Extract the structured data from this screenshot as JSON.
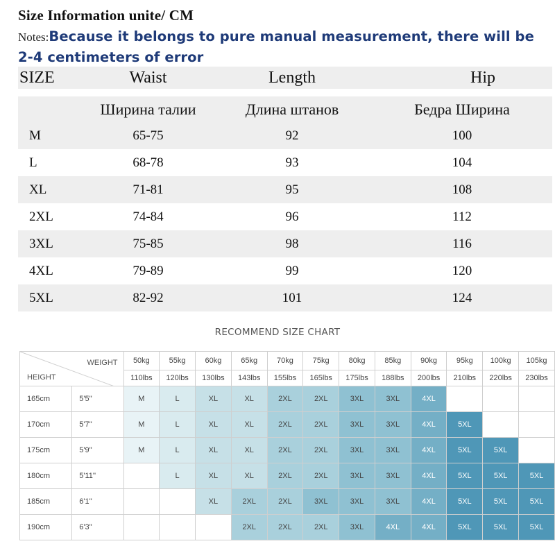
{
  "header": {
    "title": "Size Information unite/ CM",
    "notes_label": "Notes:",
    "notes_text": "Because it belongs to pure manual measurement, there will be 2-4 centimeters of error"
  },
  "size_table": {
    "headers": [
      "SIZE",
      "Waist",
      "Length",
      "Hip"
    ],
    "ru_headers": [
      "",
      "Ширина талии",
      "Длина штанов",
      "Бедра Ширина"
    ],
    "rows": [
      {
        "size": "M",
        "waist": "65-75",
        "length": "92",
        "hip": "100"
      },
      {
        "size": "L",
        "waist": "68-78",
        "length": "93",
        "hip": "104"
      },
      {
        "size": "XL",
        "waist": "71-81",
        "length": "95",
        "hip": "108"
      },
      {
        "size": "2XL",
        "waist": "74-84",
        "length": "96",
        "hip": "112"
      },
      {
        "size": "3XL",
        "waist": "75-85",
        "length": "98",
        "hip": "116"
      },
      {
        "size": "4XL",
        "waist": "79-89",
        "length": "99",
        "hip": "120"
      },
      {
        "size": "5XL",
        "waist": "82-92",
        "length": "101",
        "hip": "124"
      }
    ]
  },
  "recommend": {
    "title": "RECOMMEND SIZE CHART",
    "weight_label": "WEIGHT",
    "height_label": "HEIGHT",
    "weights_kg": [
      "50kg",
      "55kg",
      "60kg",
      "65kg",
      "70kg",
      "75kg",
      "80kg",
      "85kg",
      "90kg",
      "95kg",
      "100kg",
      "105kg"
    ],
    "weights_lbs": [
      "110lbs",
      "120lbs",
      "130lbs",
      "143lbs",
      "155lbs",
      "165lbs",
      "175lbs",
      "188lbs",
      "200lbs",
      "210lbs",
      "220lbs",
      "230lbs"
    ],
    "rows": [
      {
        "cm": "165cm",
        "ft": "5'5''",
        "cells": [
          "M",
          "L",
          "XL",
          "XL",
          "2XL",
          "2XL",
          "3XL",
          "3XL",
          "4XL",
          "",
          "",
          ""
        ]
      },
      {
        "cm": "170cm",
        "ft": "5'7''",
        "cells": [
          "M",
          "L",
          "XL",
          "XL",
          "2XL",
          "2XL",
          "3XL",
          "3XL",
          "4XL",
          "5XL",
          "",
          ""
        ]
      },
      {
        "cm": "175cm",
        "ft": "5'9''",
        "cells": [
          "M",
          "L",
          "XL",
          "XL",
          "2XL",
          "2XL",
          "3XL",
          "3XL",
          "4XL",
          "5XL",
          "5XL",
          ""
        ]
      },
      {
        "cm": "180cm",
        "ft": "5'11''",
        "cells": [
          "",
          "L",
          "XL",
          "XL",
          "2XL",
          "2XL",
          "3XL",
          "3XL",
          "4XL",
          "5XL",
          "5XL",
          "5XL"
        ]
      },
      {
        "cm": "185cm",
        "ft": "6'1''",
        "cells": [
          "",
          "",
          "XL",
          "2XL",
          "2XL",
          "3XL",
          "3XL",
          "3XL",
          "4XL",
          "5XL",
          "5XL",
          "5XL"
        ]
      },
      {
        "cm": "190cm",
        "ft": "6'3''",
        "cells": [
          "",
          "",
          "",
          "2XL",
          "2XL",
          "2XL",
          "3XL",
          "4XL",
          "4XL",
          "5XL",
          "5XL",
          "5XL"
        ]
      }
    ],
    "colors": {
      "M": "#e8f3f6",
      "L": "#d9ebef",
      "XL": "#c6e0e7",
      "2XL": "#a9d0dc",
      "3XL": "#8fc1d2",
      "4XL": "#74afc6",
      "5XL": "#4f97b7",
      "empty": "#ffffff"
    }
  }
}
